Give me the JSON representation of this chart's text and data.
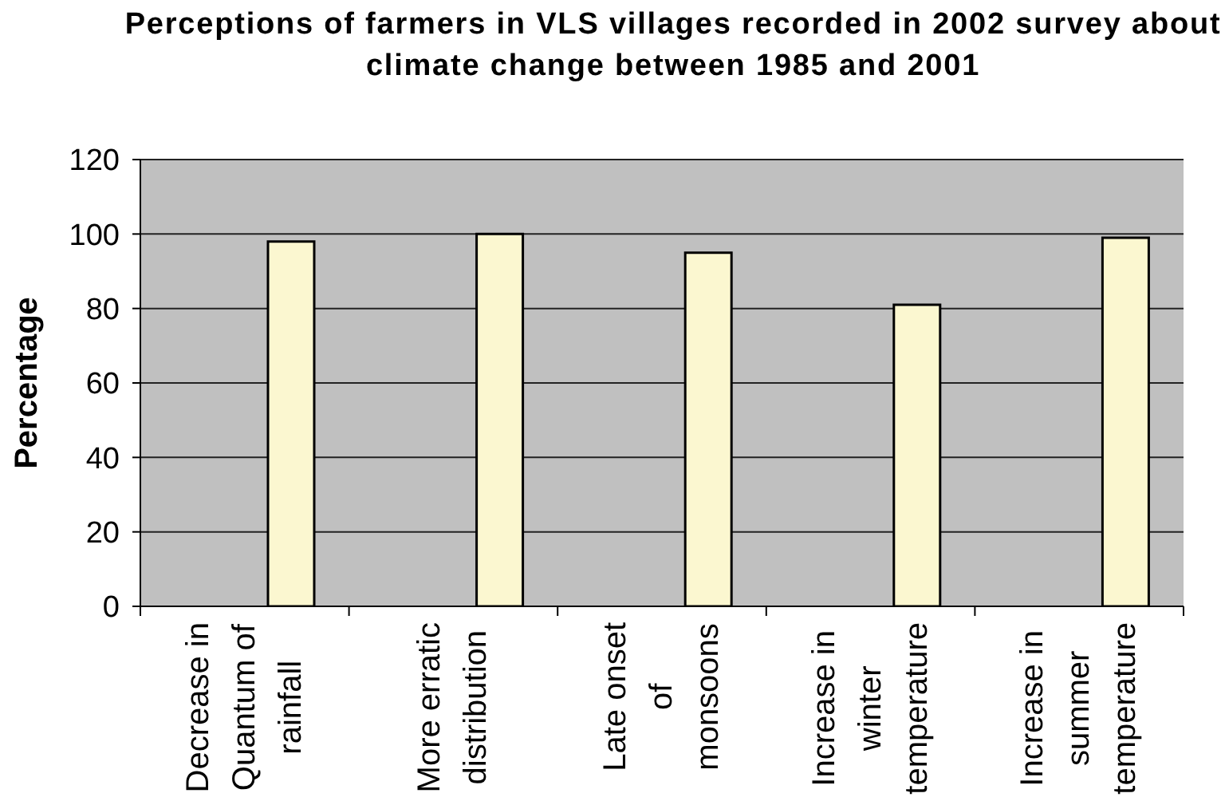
{
  "chart_data": {
    "type": "bar",
    "title": "Perceptions of farmers in VLS villages recorded in 2002 survey about climate change between 1985 and 2001",
    "ylabel": "Percentage",
    "categories": [
      "Decrease in Quantum of rainfall",
      "More erratic distribution",
      "Late onset of monsoons",
      "Increase in winter temperature",
      "Increase in summer temperature"
    ],
    "values": [
      98,
      100,
      95,
      81,
      99
    ],
    "color": "#fbf7d0",
    "ylim": [
      0,
      120
    ],
    "yticks": [
      0,
      20,
      40,
      60,
      80,
      100,
      120
    ],
    "grid": "y"
  }
}
